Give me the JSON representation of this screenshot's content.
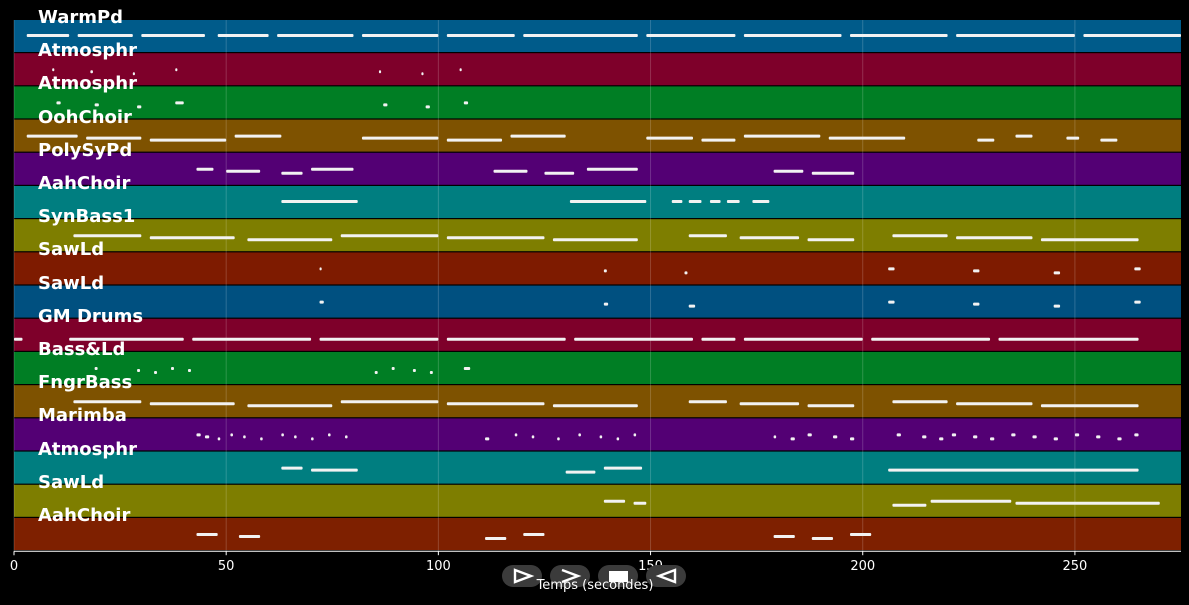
{
  "tracks": [
    {
      "label": "WarmPd",
      "color": "#005b8a"
    },
    {
      "label": "Atmosphr",
      "color": "#7e002a"
    },
    {
      "label": "Atmosphr",
      "color": "#007e24"
    },
    {
      "label": "OohChoir",
      "color": "#7e5200"
    },
    {
      "label": "PolySyPd",
      "color": "#530074"
    },
    {
      "label": "AahChoir",
      "color": "#007e80"
    },
    {
      "label": "SynBass1",
      "color": "#7e7e00"
    },
    {
      "label": "SawLd",
      "color": "#7e1b00"
    },
    {
      "label": "SawLd",
      "color": "#005080"
    },
    {
      "label": "GM Drums",
      "color": "#7e002a"
    },
    {
      "label": "Bass&Ld",
      "color": "#007e24"
    },
    {
      "label": "FngrBass",
      "color": "#7e5200"
    },
    {
      "label": "Marimba",
      "color": "#530074"
    },
    {
      "label": "Atmosphr",
      "color": "#007e80"
    },
    {
      "label": "SawLd",
      "color": "#7e7e00"
    },
    {
      "label": "AahChoir",
      "color": "#7e2000"
    }
  ],
  "x_axis": {
    "label": "Temps (secondes)",
    "range": [
      0,
      275
    ],
    "ticks": [
      0,
      50,
      100,
      150,
      200,
      250
    ],
    "tick_labels": [
      "0",
      "50",
      "100",
      "150",
      "200",
      "250"
    ]
  },
  "controls": [
    {
      "name": "play-button",
      "icon": "play-outline-icon"
    },
    {
      "name": "fast-forward-button",
      "icon": "chevron-right-icon"
    },
    {
      "name": "stop-button",
      "icon": "stop-icon"
    },
    {
      "name": "rewind-button",
      "icon": "play-reverse-icon"
    }
  ],
  "notes": [
    {
      "track": 0,
      "spans": [
        [
          3,
          13
        ],
        [
          15,
          28
        ],
        [
          30,
          45
        ],
        [
          48,
          60
        ],
        [
          62,
          80
        ],
        [
          82,
          100
        ],
        [
          102,
          118
        ],
        [
          120,
          147
        ],
        [
          149,
          170
        ],
        [
          172,
          195
        ],
        [
          197,
          220
        ],
        [
          222,
          250
        ],
        [
          252,
          275
        ]
      ]
    },
    {
      "track": 1,
      "spans": [
        [
          9,
          9.5
        ],
        [
          18,
          18.6
        ],
        [
          28,
          28.5
        ],
        [
          38,
          38.5
        ],
        [
          86,
          86.5
        ],
        [
          96,
          96.5
        ],
        [
          105,
          105.5
        ]
      ]
    },
    {
      "track": 2,
      "spans": [
        [
          10,
          11
        ],
        [
          19,
          20
        ],
        [
          29,
          30
        ],
        [
          38,
          40
        ],
        [
          87,
          88
        ],
        [
          97,
          98
        ],
        [
          106,
          107
        ]
      ]
    },
    {
      "track": 3,
      "spans": [
        [
          3,
          15
        ],
        [
          17,
          30
        ],
        [
          32,
          50
        ],
        [
          52,
          63
        ],
        [
          82,
          100
        ],
        [
          102,
          115
        ],
        [
          117,
          130
        ],
        [
          149,
          160
        ],
        [
          162,
          170
        ],
        [
          172,
          190
        ],
        [
          192,
          210
        ],
        [
          227,
          231
        ],
        [
          236,
          240
        ],
        [
          248,
          251
        ],
        [
          256,
          260
        ]
      ]
    },
    {
      "track": 4,
      "spans": [
        [
          43,
          47
        ],
        [
          50,
          58
        ],
        [
          63,
          68
        ],
        [
          70,
          80
        ],
        [
          113,
          121
        ],
        [
          125,
          132
        ],
        [
          135,
          147
        ],
        [
          179,
          186
        ],
        [
          188,
          198
        ]
      ]
    },
    {
      "track": 5,
      "spans": [
        [
          63,
          81
        ],
        [
          131,
          149
        ],
        [
          155,
          157.5
        ],
        [
          159,
          162
        ],
        [
          164,
          166.5
        ],
        [
          168,
          171
        ],
        [
          174,
          178
        ]
      ]
    },
    {
      "track": 6,
      "spans": [
        [
          14,
          30
        ],
        [
          32,
          52
        ],
        [
          55,
          75
        ],
        [
          77,
          100
        ],
        [
          102,
          125
        ],
        [
          127,
          147
        ],
        [
          159,
          168
        ],
        [
          171,
          185
        ],
        [
          187,
          198
        ],
        [
          207,
          220
        ],
        [
          222,
          240
        ],
        [
          242,
          265
        ]
      ]
    },
    {
      "track": 7,
      "spans": [
        [
          72,
          72.5
        ],
        [
          139,
          139.7
        ],
        [
          158,
          158.7
        ],
        [
          206,
          207.5
        ],
        [
          226,
          227.5
        ],
        [
          245,
          246.5
        ],
        [
          264,
          265.5
        ]
      ]
    },
    {
      "track": 8,
      "spans": [
        [
          72,
          73
        ],
        [
          139,
          140
        ],
        [
          159,
          160.5
        ],
        [
          206,
          207.5
        ],
        [
          226,
          227.5
        ],
        [
          245,
          246.5
        ],
        [
          264,
          265.5
        ]
      ]
    },
    {
      "track": 9,
      "spans": [
        [
          0,
          2
        ],
        [
          13,
          40
        ],
        [
          42,
          70
        ],
        [
          72,
          100
        ],
        [
          102,
          130
        ],
        [
          132,
          160
        ],
        [
          162,
          170
        ],
        [
          172,
          200
        ],
        [
          202,
          230
        ],
        [
          232,
          265
        ]
      ]
    },
    {
      "track": 10,
      "spans": [
        [
          19,
          19.7
        ],
        [
          29,
          29.7
        ],
        [
          33,
          33.7
        ],
        [
          37,
          37.7
        ],
        [
          41,
          41.7
        ],
        [
          85,
          85.7
        ],
        [
          89,
          89.7
        ],
        [
          94,
          94.7
        ],
        [
          98,
          98.7
        ],
        [
          106,
          107.5
        ]
      ]
    },
    {
      "track": 11,
      "spans": [
        [
          14,
          30
        ],
        [
          32,
          52
        ],
        [
          55,
          75
        ],
        [
          77,
          100
        ],
        [
          102,
          125
        ],
        [
          127,
          147
        ],
        [
          159,
          168
        ],
        [
          171,
          185
        ],
        [
          187,
          198
        ],
        [
          207,
          220
        ],
        [
          222,
          240
        ],
        [
          242,
          265
        ]
      ]
    },
    {
      "track": 12,
      "spans": [
        [
          43,
          44
        ],
        [
          45,
          46
        ],
        [
          48,
          48.6
        ],
        [
          51,
          51.6
        ],
        [
          54,
          54.6
        ],
        [
          58,
          58.6
        ],
        [
          63,
          63.6
        ],
        [
          66,
          66.6
        ],
        [
          70,
          70.6
        ],
        [
          74,
          74.6
        ],
        [
          78,
          78.6
        ],
        [
          111,
          112
        ],
        [
          118,
          118.6
        ],
        [
          122,
          122.6
        ],
        [
          128,
          128.6
        ],
        [
          133,
          133.6
        ],
        [
          138,
          138.6
        ],
        [
          142,
          142.6
        ],
        [
          146,
          146.6
        ],
        [
          179,
          179.6
        ],
        [
          183,
          184
        ],
        [
          187,
          188
        ],
        [
          193,
          194
        ],
        [
          197,
          198
        ],
        [
          208,
          209
        ],
        [
          214,
          215
        ],
        [
          218,
          219
        ],
        [
          221,
          222
        ],
        [
          226,
          227
        ],
        [
          230,
          231
        ],
        [
          235,
          236
        ],
        [
          240,
          241
        ],
        [
          245,
          246
        ],
        [
          250,
          251
        ],
        [
          255,
          256
        ],
        [
          260,
          261
        ],
        [
          264,
          265
        ]
      ]
    },
    {
      "track": 13,
      "spans": [
        [
          63,
          68
        ],
        [
          70,
          81
        ],
        [
          130,
          137
        ],
        [
          139,
          148
        ],
        [
          206,
          265
        ]
      ]
    },
    {
      "track": 14,
      "spans": [
        [
          139,
          144
        ],
        [
          146,
          149
        ],
        [
          207,
          215
        ],
        [
          216,
          235
        ],
        [
          236,
          270
        ]
      ]
    },
    {
      "track": 15,
      "spans": [
        [
          43,
          48
        ],
        [
          53,
          58
        ],
        [
          111,
          116
        ],
        [
          120,
          125
        ],
        [
          179,
          184
        ],
        [
          188,
          193
        ],
        [
          197,
          202
        ]
      ]
    }
  ]
}
